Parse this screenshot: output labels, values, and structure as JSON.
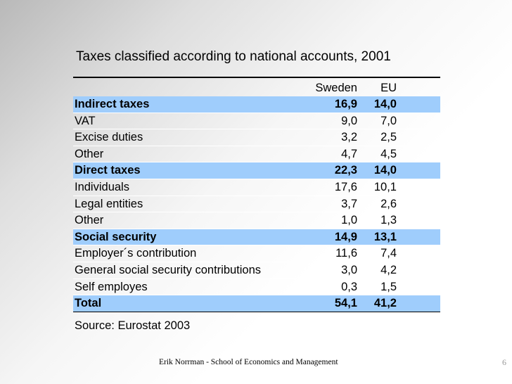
{
  "slide": {
    "title": "Taxes classified according to national accounts, 2001",
    "source": "Source: Eurostat 2003",
    "footer": "Erik Norrman - School of Economics and Management",
    "page_number": "6"
  },
  "table": {
    "columns": [
      "Sweden",
      "EU"
    ],
    "highlight_color": "#9fcdfc",
    "rows": [
      {
        "label": "Indirect taxes",
        "sweden": "16,9",
        "eu": "14,0",
        "highlight": true
      },
      {
        "label": "VAT",
        "sweden": "9,0",
        "eu": "7,0",
        "highlight": false
      },
      {
        "label": "Excise duties",
        "sweden": "3,2",
        "eu": "2,5",
        "highlight": false
      },
      {
        "label": "Other",
        "sweden": "4,7",
        "eu": "4,5",
        "highlight": false
      },
      {
        "label": "Direct taxes",
        "sweden": "22,3",
        "eu": "14,0",
        "highlight": true
      },
      {
        "label": "Individuals",
        "sweden": "17,6",
        "eu": "10,1",
        "highlight": false
      },
      {
        "label": "Legal entities",
        "sweden": "3,7",
        "eu": "2,6",
        "highlight": false
      },
      {
        "label": "Other",
        "sweden": "1,0",
        "eu": "1,3",
        "highlight": false
      },
      {
        "label": "Social security",
        "sweden": "14,9",
        "eu": "13,1",
        "highlight": true
      },
      {
        "label": "Employer´s contribution",
        "sweden": "11,6",
        "eu": "7,4",
        "highlight": false
      },
      {
        "label": "General social security contributions",
        "sweden": "3,0",
        "eu": "4,2",
        "highlight": false
      },
      {
        "label": "Self employes",
        "sweden": "0,3",
        "eu": "1,5",
        "highlight": false
      },
      {
        "label": "Total",
        "sweden": "54,1",
        "eu": "41,2",
        "highlight": true
      }
    ]
  }
}
